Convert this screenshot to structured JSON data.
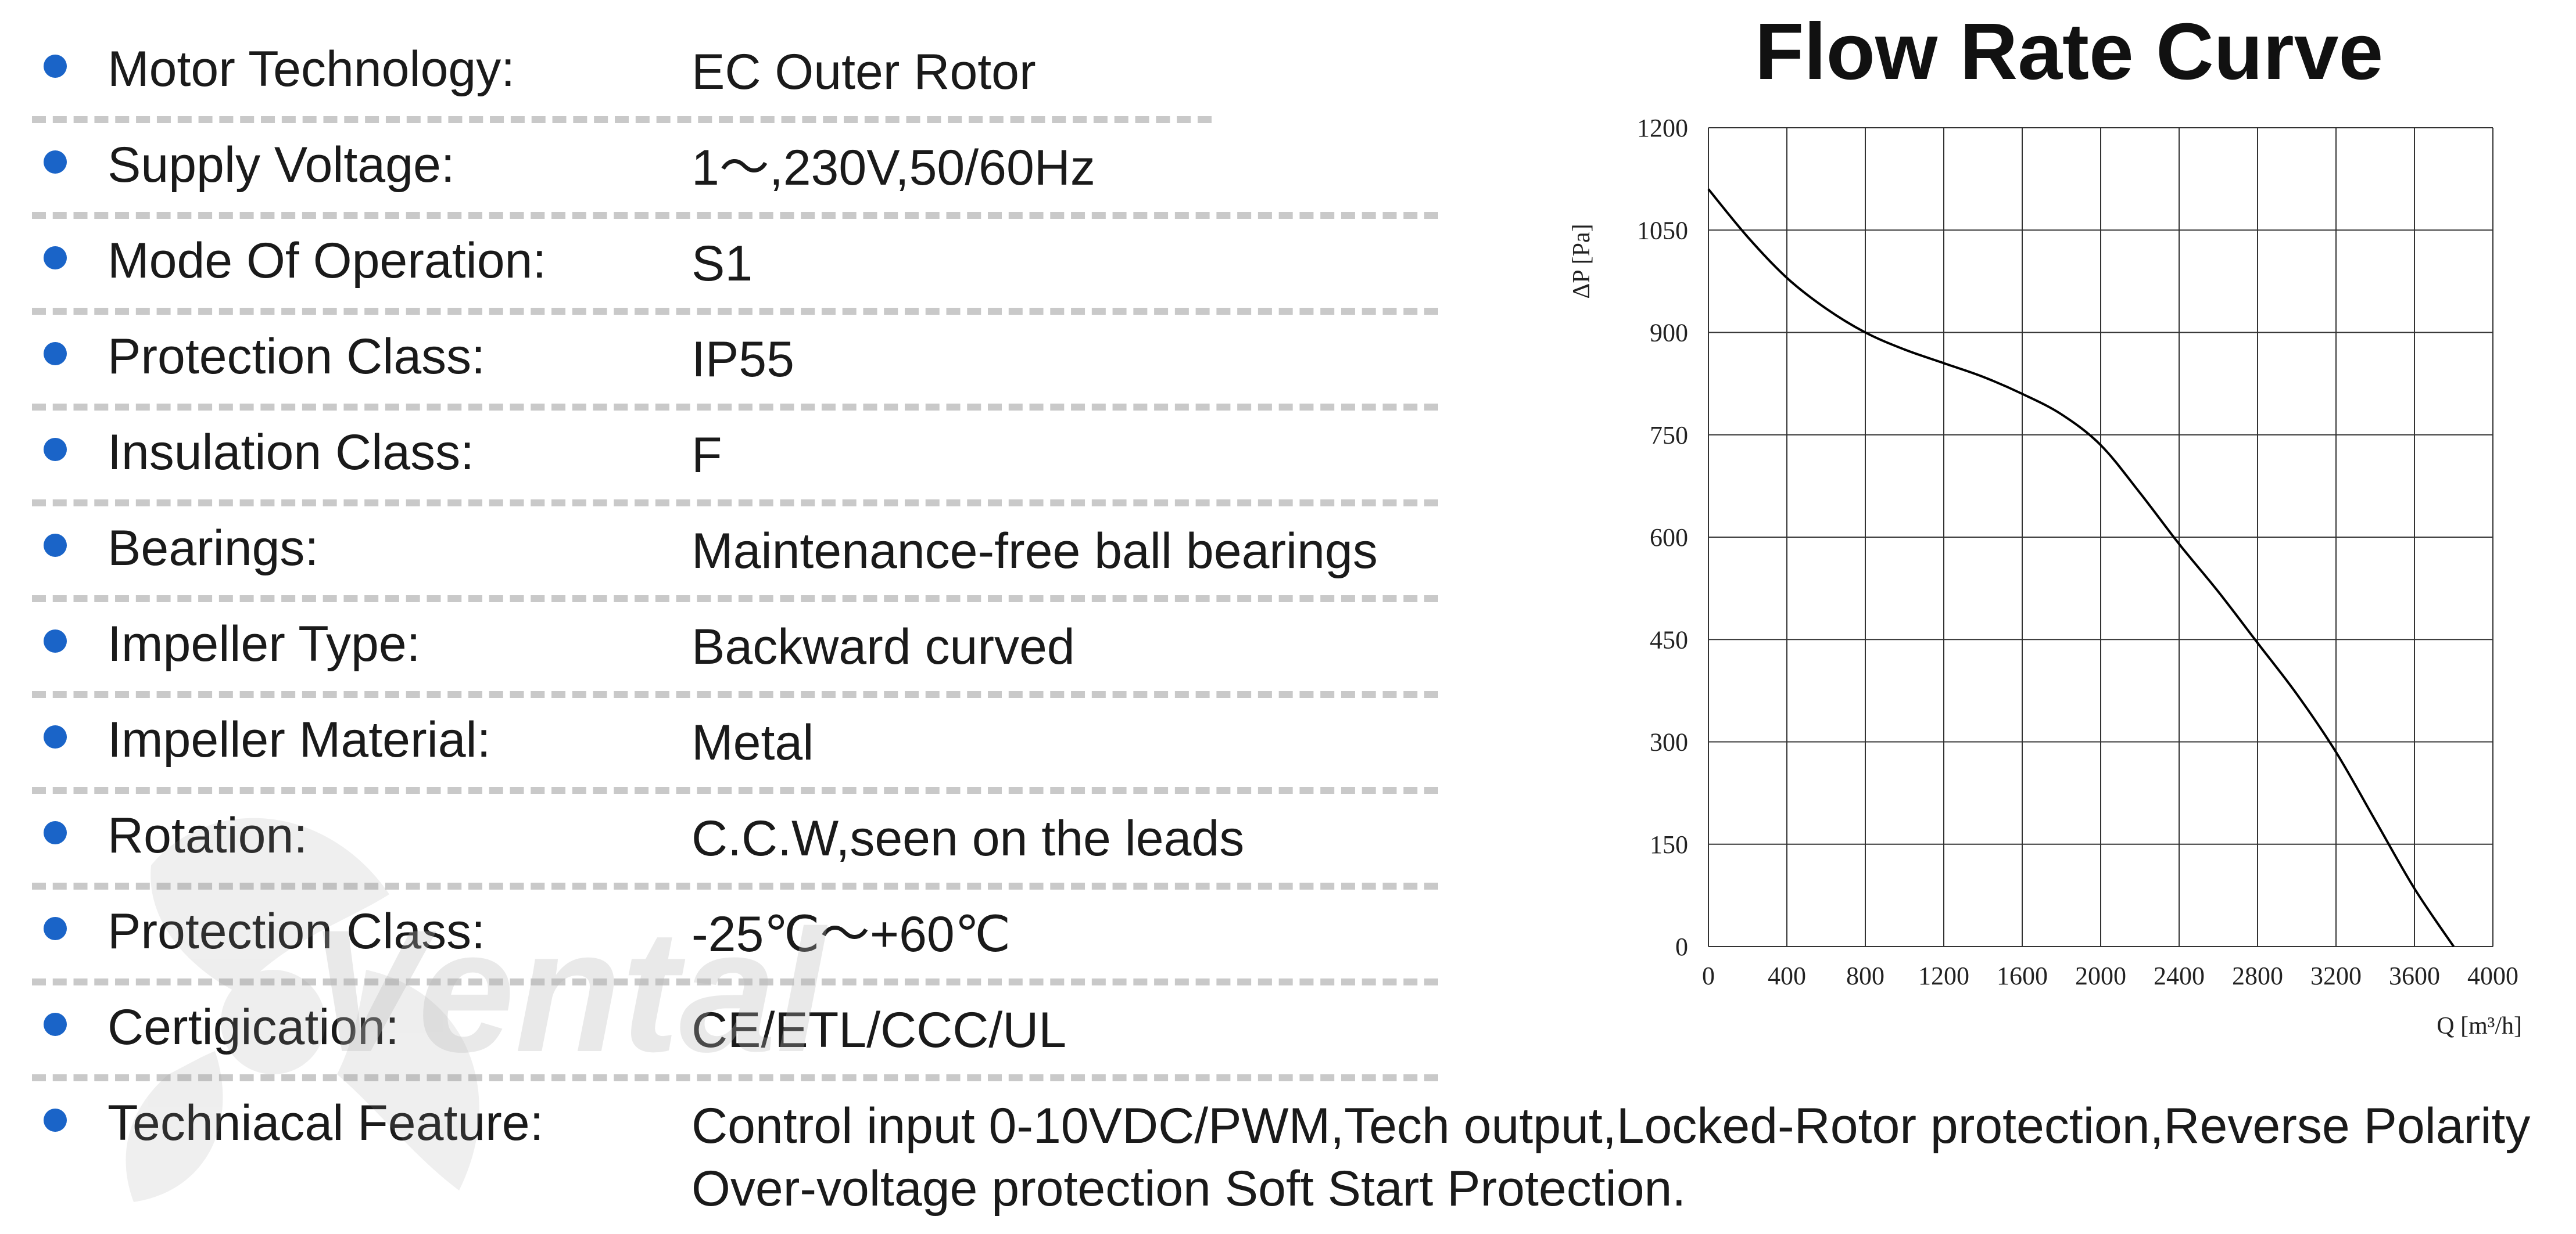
{
  "specs": [
    {
      "label": "Motor Technology:",
      "value": "EC Outer Rotor"
    },
    {
      "label": "Supply Voltage:",
      "value": "1～,230V,50/60Hz"
    },
    {
      "label": "Mode Of Operation:",
      "value": "S1"
    },
    {
      "label": "Protection Class:",
      "value": "IP55"
    },
    {
      "label": "Insulation Class:",
      "value": "F"
    },
    {
      "label": "Bearings:",
      "value": "Maintenance-free ball bearings"
    },
    {
      "label": "Impeller Type:",
      "value": "Backward curved"
    },
    {
      "label": "Impeller Material:",
      "value": "Metal"
    },
    {
      "label": "Rotation:",
      "value": "C.C.W,seen on the leads"
    },
    {
      "label": "Protection Class:",
      "value": "-25℃～+60℃"
    },
    {
      "label": "Certigication:",
      "value": "CE/ETL/CCC/UL"
    },
    {
      "label": "Techniacal Feature:",
      "value": "Control input 0-10VDC/PWM,Tech output,Locked-Rotor protection,Reverse Polarity",
      "value2": "Over-voltage protection Soft Start Protection."
    }
  ],
  "watermark": {
    "text": "Vental"
  },
  "colors": {
    "bullet": "#1a64c8",
    "divider": "#c9c9c9",
    "curve": "#000000",
    "grid": "#333333"
  },
  "chart_data": {
    "type": "line",
    "title": "Flow Rate Curve",
    "xlabel": "Q [m³/h]",
    "ylabel": "ΔP [Pa]",
    "xlim": [
      0,
      4000
    ],
    "ylim": [
      0,
      1200
    ],
    "x_ticks": [
      0,
      400,
      800,
      1200,
      1600,
      2000,
      2400,
      2800,
      3200,
      3600,
      4000
    ],
    "y_ticks": [
      0,
      150,
      300,
      450,
      600,
      750,
      900,
      1050,
      1200
    ],
    "grid": true,
    "series": [
      {
        "x": [
          0,
          200,
          400,
          600,
          800,
          1000,
          1200,
          1400,
          1600,
          1800,
          2000,
          2200,
          2400,
          2600,
          2800,
          3000,
          3200,
          3400,
          3600,
          3800
        ],
        "y": [
          1110,
          1040,
          980,
          935,
          900,
          875,
          855,
          835,
          810,
          780,
          735,
          665,
          590,
          520,
          445,
          370,
          285,
          185,
          85,
          0
        ]
      }
    ]
  }
}
